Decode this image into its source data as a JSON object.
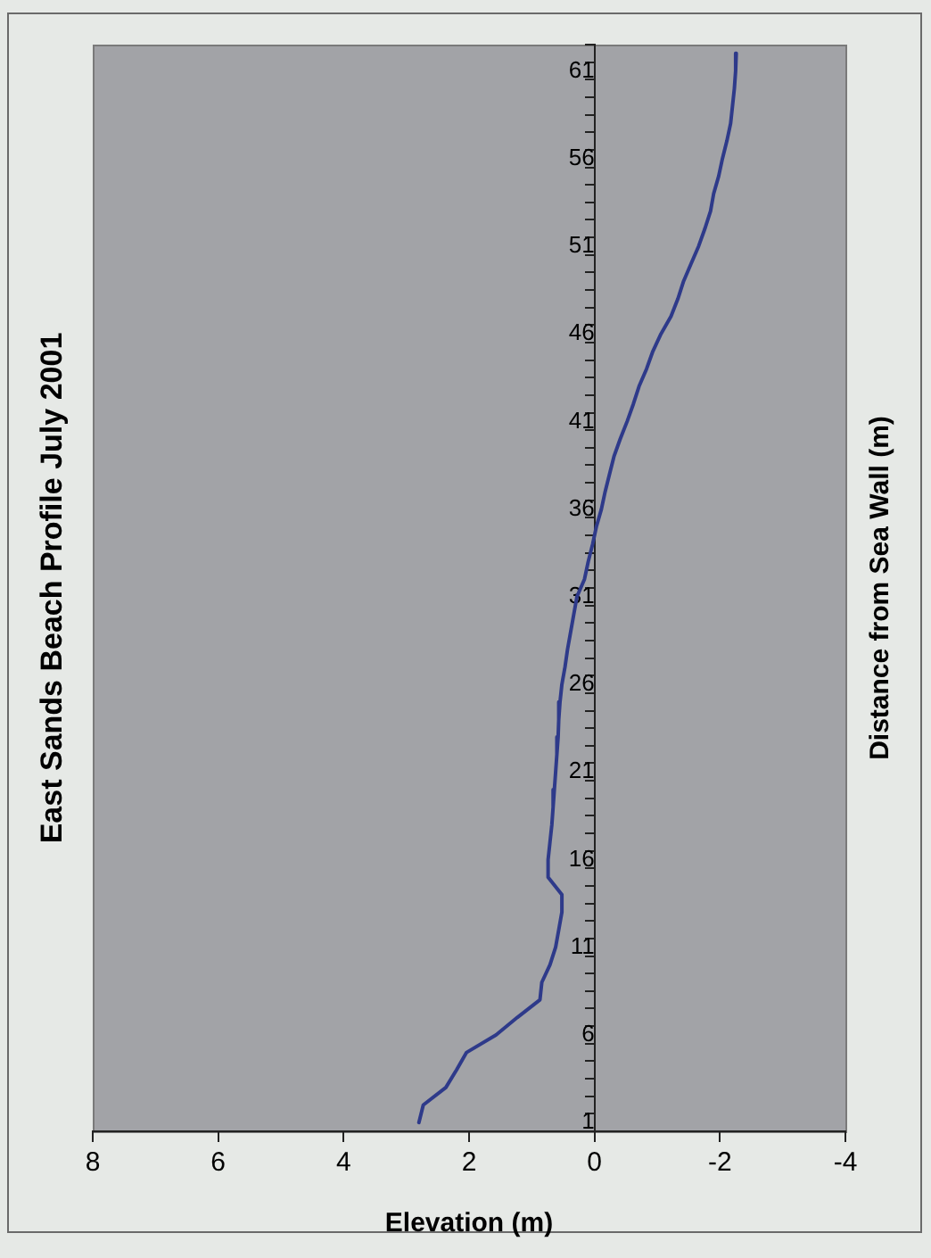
{
  "chart_data": {
    "type": "line",
    "orientation": "horizontal",
    "title": "East Sands Beach Profile July 2001",
    "xlabel": "Elevation (m)",
    "ylabel": "Distance from Sea Wall (m)",
    "categories": [
      null,
      "61",
      null,
      null,
      null,
      null,
      "56",
      null,
      null,
      null,
      null,
      "51",
      null,
      null,
      null,
      null,
      "46",
      null,
      null,
      null,
      null,
      "41",
      null,
      null,
      null,
      null,
      "36",
      null,
      null,
      null,
      null,
      "31",
      null,
      null,
      null,
      null,
      "26",
      null,
      null,
      null,
      null,
      "21",
      null,
      null,
      null,
      null,
      "16",
      null,
      null,
      null,
      null,
      "11",
      null,
      null,
      null,
      null,
      "6",
      null,
      null,
      null,
      null,
      "1"
    ],
    "series": [
      {
        "color": "#2e3a8a",
        "values": [
          -2.26,
          -2.25,
          -2.23,
          -2.2,
          -2.17,
          -2.11,
          -2.04,
          -1.98,
          -1.9,
          -1.85,
          -1.76,
          -1.66,
          -1.54,
          -1.42,
          -1.33,
          -1.22,
          -1.06,
          -0.93,
          -0.83,
          -0.71,
          -0.62,
          -0.52,
          -0.41,
          -0.31,
          -0.24,
          -0.17,
          -0.11,
          -0.03,
          0.03,
          0.1,
          0.16,
          0.28,
          0.33,
          0.38,
          0.43,
          0.47,
          0.52,
          0.55,
          0.57,
          0.58,
          0.6,
          0.62,
          0.64,
          0.66,
          0.68,
          0.71,
          0.74,
          0.74,
          0.52,
          0.52,
          0.57,
          0.62,
          0.71,
          0.84,
          0.87,
          1.23,
          1.57,
          2.04,
          2.2,
          2.37,
          2.73,
          2.8
        ]
      }
    ],
    "xlim": [
      8,
      -4
    ],
    "xticks": [
      8,
      6,
      4,
      2,
      0,
      -2,
      -4
    ],
    "grid": false,
    "marker": "none",
    "line_style": "solid"
  }
}
